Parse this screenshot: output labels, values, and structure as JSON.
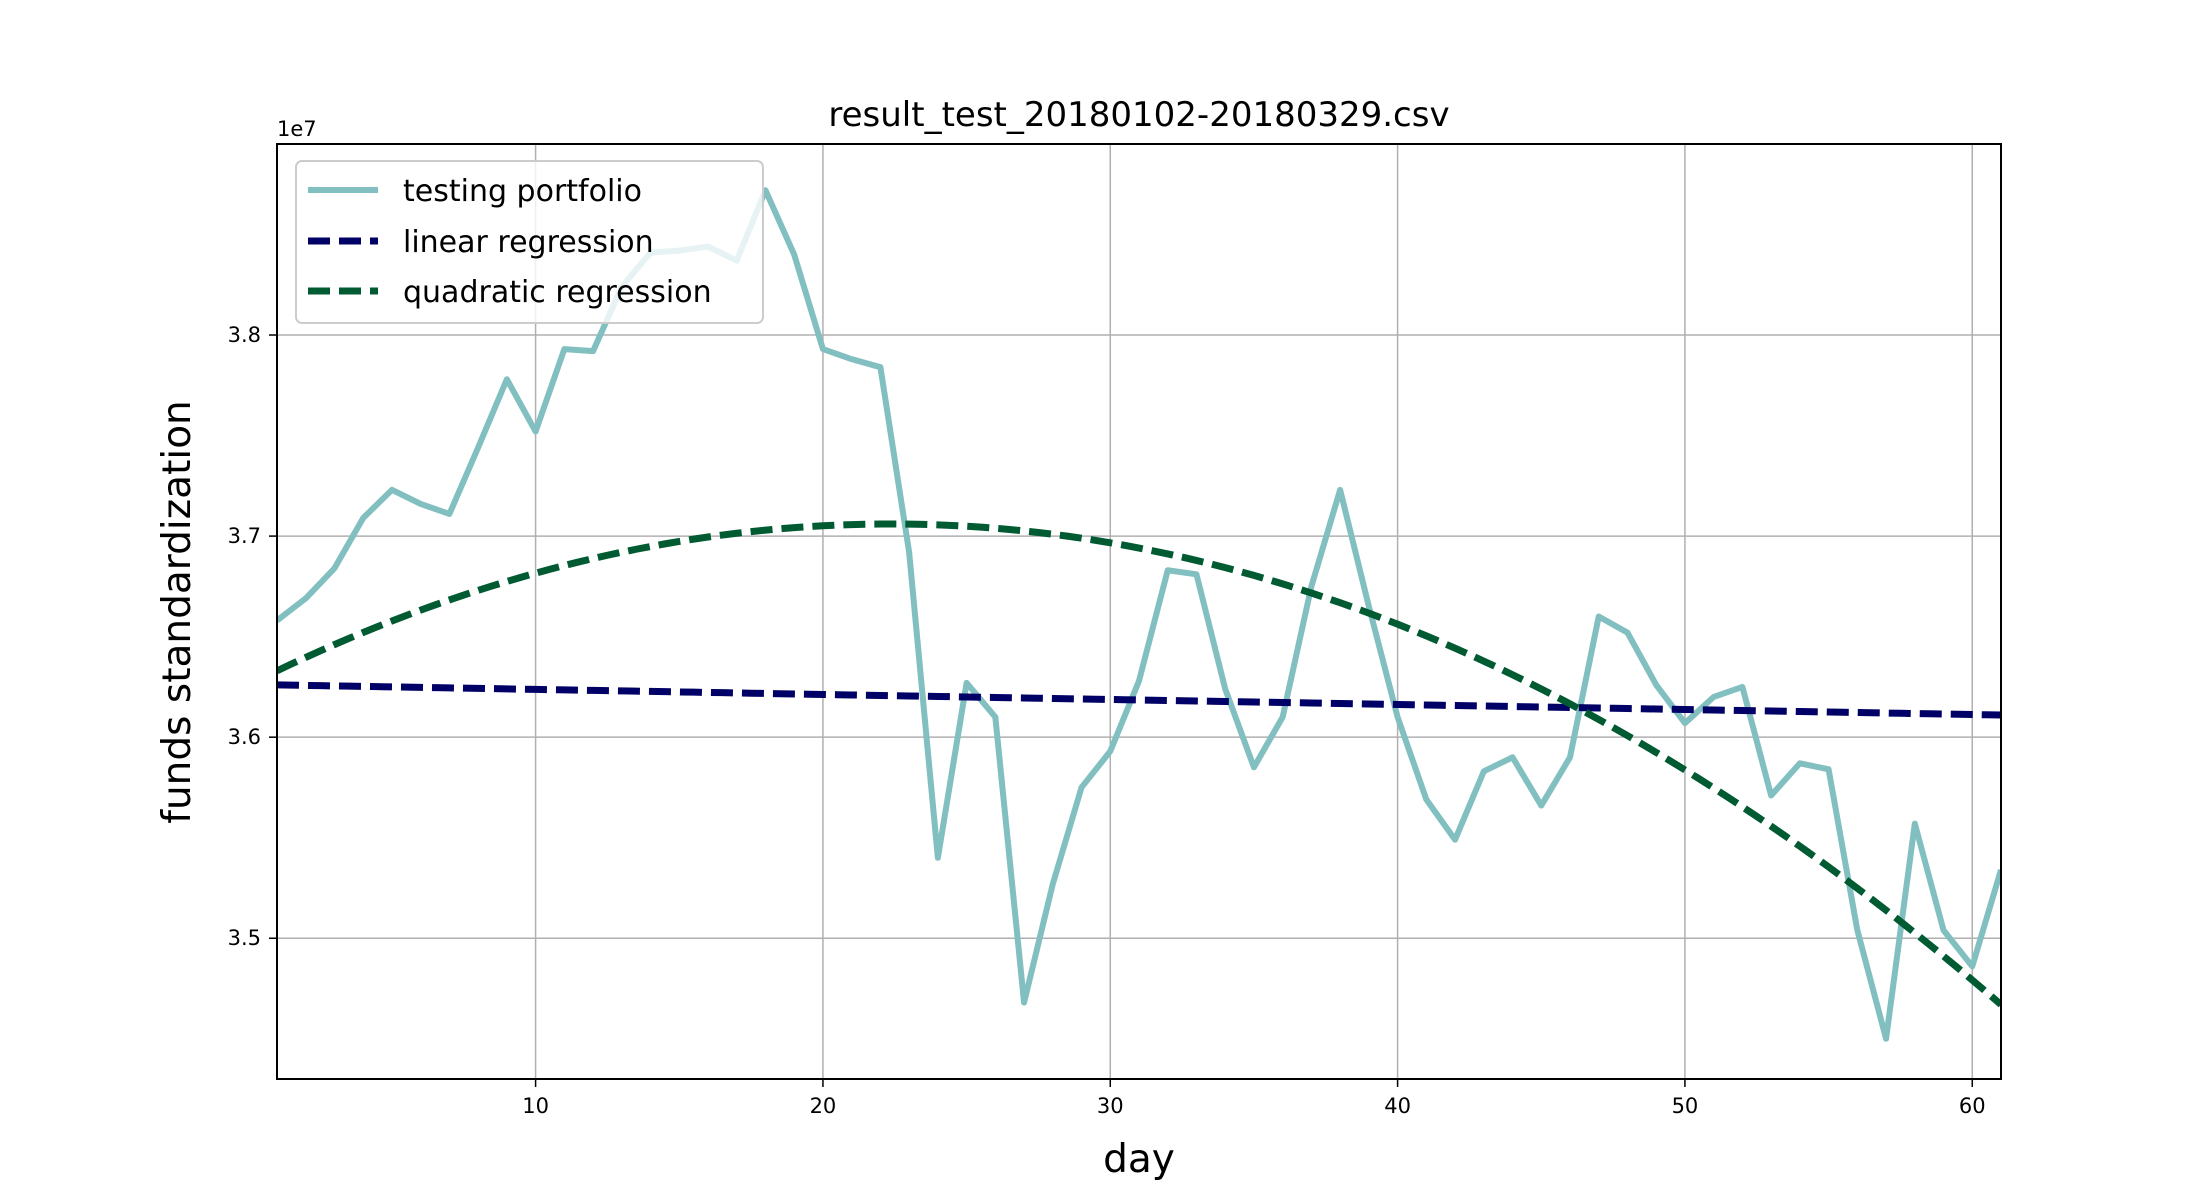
{
  "chart_data": {
    "type": "line",
    "title": "result_test_20180102-20180329.csv",
    "xlabel": "day",
    "ylabel": "funds standardization",
    "y_offset_label": "1e7",
    "xlim": [
      1,
      61
    ],
    "ylim": [
      34300000,
      38950000
    ],
    "x_ticks": [
      10,
      20,
      30,
      40,
      50,
      60
    ],
    "y_ticks": [
      35000000,
      36000000,
      37000000,
      38000000
    ],
    "y_tick_labels": [
      "3.5",
      "3.6",
      "3.7",
      "3.8"
    ],
    "grid": true,
    "legend_position": "top-left",
    "series": [
      {
        "name": "testing portfolio",
        "style": "solid",
        "color": "#82bfc0",
        "x": [
          1,
          2,
          3,
          4,
          5,
          6,
          7,
          8,
          9,
          10,
          11,
          12,
          13,
          14,
          15,
          16,
          17,
          18,
          19,
          20,
          21,
          22,
          23,
          24,
          25,
          26,
          27,
          28,
          29,
          30,
          31,
          32,
          33,
          34,
          35,
          36,
          37,
          38,
          39,
          40,
          41,
          42,
          43,
          44,
          45,
          46,
          47,
          48,
          49,
          50,
          51,
          52,
          53,
          54,
          55,
          56,
          57,
          58,
          59,
          60,
          61
        ],
        "y": [
          36580000,
          36690000,
          36840000,
          37090000,
          37230000,
          37160000,
          37110000,
          37440000,
          37780000,
          37520000,
          37930000,
          37920000,
          38240000,
          38410000,
          38420000,
          38440000,
          38370000,
          38720000,
          38400000,
          37930000,
          37880000,
          37840000,
          36920000,
          35400000,
          36270000,
          36100000,
          34680000,
          35270000,
          35750000,
          35930000,
          36280000,
          36830000,
          36810000,
          36240000,
          35850000,
          36100000,
          36750000,
          37230000,
          36650000,
          36100000,
          35690000,
          35490000,
          35830000,
          35900000,
          35660000,
          35900000,
          36600000,
          36520000,
          36260000,
          36070000,
          36200000,
          36250000,
          35710000,
          35870000,
          35840000,
          35040000,
          34500000,
          35570000,
          35040000,
          34860000,
          35340000
        ]
      },
      {
        "name": "linear regression",
        "style": "dashed",
        "color": "#000066",
        "fit": "linear",
        "points": [
          [
            1,
            36260000
          ],
          [
            61,
            36110000
          ]
        ]
      },
      {
        "name": "quadratic regression",
        "style": "dashed",
        "color": "#005a32",
        "fit": "quadratic",
        "points": [
          [
            1,
            36330000
          ],
          [
            22,
            37060000
          ],
          [
            61,
            34670000
          ]
        ]
      }
    ]
  }
}
